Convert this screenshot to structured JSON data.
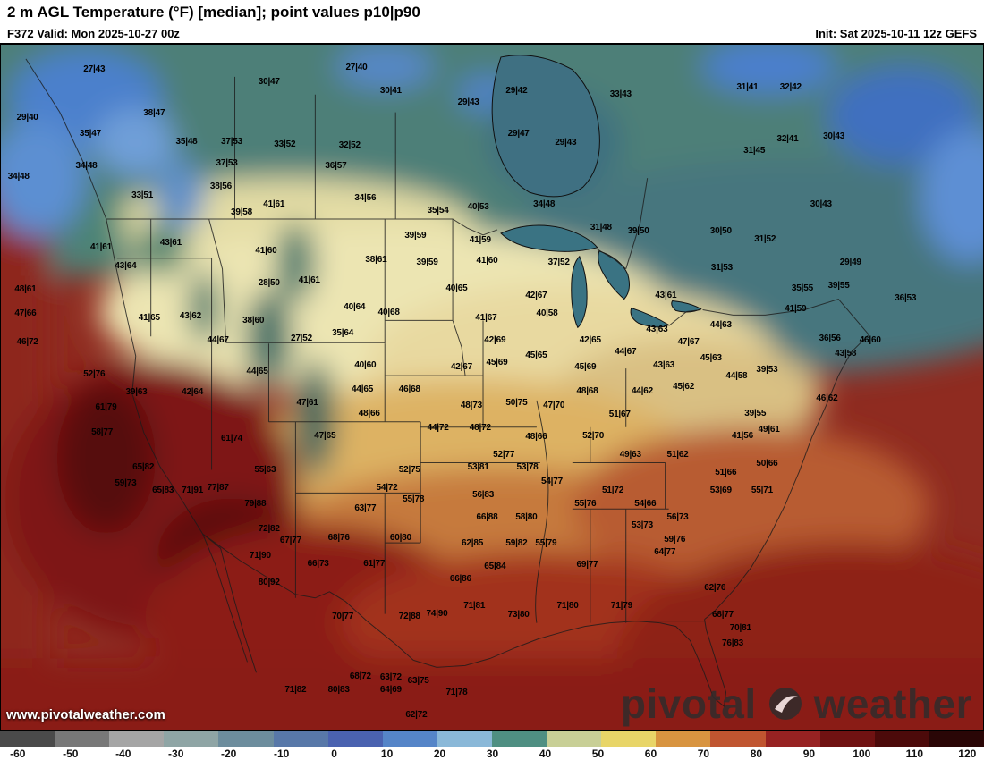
{
  "header": {
    "title": "2 m AGL Temperature (°F) [median]; point values p10|p90",
    "valid": "F372 Valid: Mon 2025-10-27 00z",
    "init": "Init: Sat 2025-10-11 12z GEFS"
  },
  "watermark": {
    "url_text": "www.pivotalweather.com",
    "brand_left": "pivotal",
    "brand_right": "weather"
  },
  "map": {
    "points": [
      {
        "v": "27|43",
        "x": 9.5,
        "y": 3.6
      },
      {
        "v": "30|47",
        "x": 27.3,
        "y": 5.5
      },
      {
        "v": "27|40",
        "x": 36.2,
        "y": 3.4
      },
      {
        "v": "30|41",
        "x": 39.7,
        "y": 6.8
      },
      {
        "v": "29|43",
        "x": 47.6,
        "y": 8.5
      },
      {
        "v": "29|42",
        "x": 52.5,
        "y": 6.8
      },
      {
        "v": "33|43",
        "x": 63.1,
        "y": 7.3
      },
      {
        "v": "31|41",
        "x": 76.0,
        "y": 6.3
      },
      {
        "v": "32|42",
        "x": 80.4,
        "y": 6.3
      },
      {
        "v": "29|40",
        "x": 2.7,
        "y": 10.7
      },
      {
        "v": "38|47",
        "x": 15.6,
        "y": 10.0
      },
      {
        "v": "35|47",
        "x": 9.1,
        "y": 13.0
      },
      {
        "v": "35|48",
        "x": 18.9,
        "y": 14.2
      },
      {
        "v": "37|53",
        "x": 23.5,
        "y": 14.2
      },
      {
        "v": "33|52",
        "x": 28.9,
        "y": 14.6
      },
      {
        "v": "32|52",
        "x": 35.5,
        "y": 14.8
      },
      {
        "v": "29|47",
        "x": 52.7,
        "y": 13.0
      },
      {
        "v": "29|43",
        "x": 57.5,
        "y": 14.3
      },
      {
        "v": "32|41",
        "x": 80.1,
        "y": 13.9
      },
      {
        "v": "30|43",
        "x": 84.8,
        "y": 13.5
      },
      {
        "v": "31|45",
        "x": 76.7,
        "y": 15.6
      },
      {
        "v": "34|48",
        "x": 8.7,
        "y": 17.8
      },
      {
        "v": "37|53",
        "x": 23.0,
        "y": 17.4
      },
      {
        "v": "36|57",
        "x": 34.1,
        "y": 17.8
      },
      {
        "v": "34|48",
        "x": 1.8,
        "y": 19.3
      },
      {
        "v": "38|56",
        "x": 22.4,
        "y": 20.8
      },
      {
        "v": "33|51",
        "x": 14.4,
        "y": 22.0
      },
      {
        "v": "34|56",
        "x": 37.1,
        "y": 22.4
      },
      {
        "v": "30|43",
        "x": 83.5,
        "y": 23.4
      },
      {
        "v": "41|61",
        "x": 27.8,
        "y": 23.4
      },
      {
        "v": "39|58",
        "x": 24.5,
        "y": 24.6
      },
      {
        "v": "35|54",
        "x": 44.5,
        "y": 24.3
      },
      {
        "v": "40|53",
        "x": 48.6,
        "y": 23.7
      },
      {
        "v": "34|48",
        "x": 55.3,
        "y": 23.4
      },
      {
        "v": "31|48",
        "x": 61.1,
        "y": 26.7
      },
      {
        "v": "39|50",
        "x": 64.9,
        "y": 27.3
      },
      {
        "v": "30|50",
        "x": 73.3,
        "y": 27.3
      },
      {
        "v": "31|52",
        "x": 77.8,
        "y": 28.4
      },
      {
        "v": "41|61",
        "x": 10.2,
        "y": 29.6
      },
      {
        "v": "43|61",
        "x": 17.3,
        "y": 29.0
      },
      {
        "v": "41|60",
        "x": 27.0,
        "y": 30.2
      },
      {
        "v": "39|59",
        "x": 42.2,
        "y": 27.9
      },
      {
        "v": "41|59",
        "x": 48.8,
        "y": 28.6
      },
      {
        "v": "43|64",
        "x": 12.7,
        "y": 32.4
      },
      {
        "v": "38|61",
        "x": 38.2,
        "y": 31.5
      },
      {
        "v": "39|59",
        "x": 43.4,
        "y": 31.9
      },
      {
        "v": "41|60",
        "x": 49.5,
        "y": 31.6
      },
      {
        "v": "37|52",
        "x": 56.8,
        "y": 31.9
      },
      {
        "v": "31|53",
        "x": 73.4,
        "y": 32.7
      },
      {
        "v": "29|49",
        "x": 86.5,
        "y": 31.9
      },
      {
        "v": "48|61",
        "x": 2.5,
        "y": 35.8
      },
      {
        "v": "28|50",
        "x": 27.3,
        "y": 34.8
      },
      {
        "v": "41|61",
        "x": 31.4,
        "y": 34.5
      },
      {
        "v": "40|65",
        "x": 46.4,
        "y": 35.7
      },
      {
        "v": "35|55",
        "x": 81.6,
        "y": 35.7
      },
      {
        "v": "39|55",
        "x": 85.3,
        "y": 35.2
      },
      {
        "v": "36|53",
        "x": 92.1,
        "y": 37.1
      },
      {
        "v": "43|61",
        "x": 67.7,
        "y": 36.7
      },
      {
        "v": "42|67",
        "x": 54.5,
        "y": 36.7
      },
      {
        "v": "47|66",
        "x": 2.5,
        "y": 39.3
      },
      {
        "v": "41|65",
        "x": 15.1,
        "y": 40.0
      },
      {
        "v": "43|62",
        "x": 19.3,
        "y": 39.7
      },
      {
        "v": "38|60",
        "x": 25.7,
        "y": 40.4
      },
      {
        "v": "40|64",
        "x": 36.0,
        "y": 38.4
      },
      {
        "v": "40|68",
        "x": 39.5,
        "y": 39.1
      },
      {
        "v": "40|58",
        "x": 55.6,
        "y": 39.3
      },
      {
        "v": "41|67",
        "x": 49.4,
        "y": 40.0
      },
      {
        "v": "43|63",
        "x": 66.8,
        "y": 41.7
      },
      {
        "v": "44|63",
        "x": 73.3,
        "y": 41.0
      },
      {
        "v": "41|59",
        "x": 80.9,
        "y": 38.7
      },
      {
        "v": "36|56",
        "x": 84.4,
        "y": 43.0
      },
      {
        "v": "46|60",
        "x": 88.5,
        "y": 43.2
      },
      {
        "v": "43|58",
        "x": 86.0,
        "y": 45.2
      },
      {
        "v": "46|72",
        "x": 2.7,
        "y": 43.5
      },
      {
        "v": "44|67",
        "x": 22.1,
        "y": 43.2
      },
      {
        "v": "27|52",
        "x": 30.6,
        "y": 43.0
      },
      {
        "v": "35|64",
        "x": 34.8,
        "y": 42.2
      },
      {
        "v": "42|69",
        "x": 50.3,
        "y": 43.2
      },
      {
        "v": "42|65",
        "x": 60.0,
        "y": 43.2
      },
      {
        "v": "44|67",
        "x": 63.6,
        "y": 44.9
      },
      {
        "v": "47|67",
        "x": 70.0,
        "y": 43.5
      },
      {
        "v": "45|63",
        "x": 72.3,
        "y": 45.8
      },
      {
        "v": "39|53",
        "x": 78.0,
        "y": 47.5
      },
      {
        "v": "52|76",
        "x": 9.5,
        "y": 48.2
      },
      {
        "v": "44|65",
        "x": 26.1,
        "y": 47.8
      },
      {
        "v": "40|60",
        "x": 37.1,
        "y": 46.9
      },
      {
        "v": "42|67",
        "x": 46.9,
        "y": 47.1
      },
      {
        "v": "45|69",
        "x": 50.5,
        "y": 46.5
      },
      {
        "v": "45|65",
        "x": 54.5,
        "y": 45.4
      },
      {
        "v": "45|69",
        "x": 59.5,
        "y": 47.1
      },
      {
        "v": "43|63",
        "x": 67.5,
        "y": 46.9
      },
      {
        "v": "44|62",
        "x": 65.3,
        "y": 50.7
      },
      {
        "v": "45|62",
        "x": 69.5,
        "y": 50.0
      },
      {
        "v": "44|58",
        "x": 74.9,
        "y": 48.4
      },
      {
        "v": "39|63",
        "x": 13.8,
        "y": 50.8
      },
      {
        "v": "42|64",
        "x": 19.5,
        "y": 50.8
      },
      {
        "v": "44|65",
        "x": 36.8,
        "y": 50.4
      },
      {
        "v": "46|68",
        "x": 41.6,
        "y": 50.4
      },
      {
        "v": "48|66",
        "x": 37.5,
        "y": 53.9
      },
      {
        "v": "61|79",
        "x": 10.7,
        "y": 53.0
      },
      {
        "v": "47|61",
        "x": 31.2,
        "y": 52.3
      },
      {
        "v": "48|73",
        "x": 47.9,
        "y": 52.7
      },
      {
        "v": "50|75",
        "x": 52.5,
        "y": 52.3
      },
      {
        "v": "47|70",
        "x": 56.3,
        "y": 52.7
      },
      {
        "v": "48|68",
        "x": 59.7,
        "y": 50.7
      },
      {
        "v": "39|55",
        "x": 76.8,
        "y": 53.9
      },
      {
        "v": "49|61",
        "x": 78.2,
        "y": 56.3
      },
      {
        "v": "41|56",
        "x": 75.5,
        "y": 57.2
      },
      {
        "v": "58|77",
        "x": 10.3,
        "y": 56.6
      },
      {
        "v": "61|74",
        "x": 23.5,
        "y": 57.6
      },
      {
        "v": "47|65",
        "x": 33.0,
        "y": 57.2
      },
      {
        "v": "44|72",
        "x": 44.5,
        "y": 56.0
      },
      {
        "v": "48|72",
        "x": 48.8,
        "y": 56.0
      },
      {
        "v": "48|66",
        "x": 54.5,
        "y": 57.3
      },
      {
        "v": "52|70",
        "x": 60.3,
        "y": 57.2
      },
      {
        "v": "51|67",
        "x": 63.0,
        "y": 54.0
      },
      {
        "v": "49|63",
        "x": 64.1,
        "y": 59.9
      },
      {
        "v": "51|62",
        "x": 68.9,
        "y": 59.9
      },
      {
        "v": "52|77",
        "x": 51.2,
        "y": 59.9
      },
      {
        "v": "46|62",
        "x": 84.1,
        "y": 51.7
      },
      {
        "v": "65|82",
        "x": 14.5,
        "y": 61.7
      },
      {
        "v": "55|63",
        "x": 26.9,
        "y": 62.1
      },
      {
        "v": "53|81",
        "x": 48.6,
        "y": 61.7
      },
      {
        "v": "53|78",
        "x": 53.6,
        "y": 61.8
      },
      {
        "v": "51|66",
        "x": 73.8,
        "y": 62.5
      },
      {
        "v": "50|66",
        "x": 78.0,
        "y": 61.2
      },
      {
        "v": "59|73",
        "x": 12.7,
        "y": 64.1
      },
      {
        "v": "65|83",
        "x": 16.5,
        "y": 65.1
      },
      {
        "v": "71|91",
        "x": 19.5,
        "y": 65.1
      },
      {
        "v": "77|87",
        "x": 22.1,
        "y": 64.7
      },
      {
        "v": "52|75",
        "x": 41.6,
        "y": 62.1
      },
      {
        "v": "54|72",
        "x": 39.3,
        "y": 64.7
      },
      {
        "v": "54|77",
        "x": 56.1,
        "y": 63.8
      },
      {
        "v": "51|72",
        "x": 62.3,
        "y": 65.1
      },
      {
        "v": "53|69",
        "x": 73.3,
        "y": 65.1
      },
      {
        "v": "55|71",
        "x": 77.5,
        "y": 65.1
      },
      {
        "v": "79|88",
        "x": 25.9,
        "y": 67.1
      },
      {
        "v": "55|78",
        "x": 42.0,
        "y": 66.4
      },
      {
        "v": "56|83",
        "x": 49.1,
        "y": 65.8
      },
      {
        "v": "55|76",
        "x": 59.5,
        "y": 67.1
      },
      {
        "v": "54|66",
        "x": 65.6,
        "y": 67.1
      },
      {
        "v": "56|73",
        "x": 68.9,
        "y": 69.0
      },
      {
        "v": "63|77",
        "x": 37.1,
        "y": 67.7
      },
      {
        "v": "66|88",
        "x": 49.5,
        "y": 69.0
      },
      {
        "v": "58|80",
        "x": 53.5,
        "y": 69.0
      },
      {
        "v": "53|73",
        "x": 65.3,
        "y": 70.3
      },
      {
        "v": "72|82",
        "x": 27.3,
        "y": 70.8
      },
      {
        "v": "67|77",
        "x": 29.5,
        "y": 72.5
      },
      {
        "v": "68|76",
        "x": 34.4,
        "y": 72.1
      },
      {
        "v": "60|80",
        "x": 40.7,
        "y": 72.1
      },
      {
        "v": "62|85",
        "x": 48.0,
        "y": 72.9
      },
      {
        "v": "59|82",
        "x": 52.5,
        "y": 72.8
      },
      {
        "v": "55|79",
        "x": 55.5,
        "y": 72.8
      },
      {
        "v": "59|76",
        "x": 68.6,
        "y": 72.3
      },
      {
        "v": "71|90",
        "x": 26.4,
        "y": 74.7
      },
      {
        "v": "66|73",
        "x": 32.3,
        "y": 75.8
      },
      {
        "v": "61|77",
        "x": 38.0,
        "y": 75.8
      },
      {
        "v": "65|84",
        "x": 50.3,
        "y": 76.2
      },
      {
        "v": "69|77",
        "x": 59.7,
        "y": 76.0
      },
      {
        "v": "64|77",
        "x": 67.6,
        "y": 74.2
      },
      {
        "v": "62|76",
        "x": 72.7,
        "y": 79.4
      },
      {
        "v": "80|92",
        "x": 27.3,
        "y": 78.6
      },
      {
        "v": "66|86",
        "x": 46.8,
        "y": 78.1
      },
      {
        "v": "71|81",
        "x": 48.2,
        "y": 82.0
      },
      {
        "v": "73|80",
        "x": 52.7,
        "y": 83.3
      },
      {
        "v": "71|80",
        "x": 57.7,
        "y": 82.0
      },
      {
        "v": "71|79",
        "x": 63.2,
        "y": 82.0
      },
      {
        "v": "70|77",
        "x": 34.8,
        "y": 83.6
      },
      {
        "v": "72|88",
        "x": 41.6,
        "y": 83.6
      },
      {
        "v": "74|90",
        "x": 44.4,
        "y": 83.2
      },
      {
        "v": "68|77",
        "x": 73.5,
        "y": 83.3
      },
      {
        "v": "70|81",
        "x": 75.3,
        "y": 85.2
      },
      {
        "v": "76|83",
        "x": 74.5,
        "y": 87.5
      },
      {
        "v": "68|72",
        "x": 36.6,
        "y": 92.3
      },
      {
        "v": "63|72",
        "x": 39.7,
        "y": 92.4
      },
      {
        "v": "80|83",
        "x": 34.4,
        "y": 94.3
      },
      {
        "v": "71|82",
        "x": 30.0,
        "y": 94.3
      },
      {
        "v": "64|69",
        "x": 39.7,
        "y": 94.3
      },
      {
        "v": "63|75",
        "x": 42.5,
        "y": 93.0
      },
      {
        "v": "71|78",
        "x": 46.4,
        "y": 94.7
      },
      {
        "v": "62|72",
        "x": 42.3,
        "y": 97.9
      }
    ]
  },
  "colorbar": {
    "ticks": [
      "-60",
      "-50",
      "-40",
      "-30",
      "-20",
      "-10",
      "0",
      "10",
      "20",
      "30",
      "40",
      "50",
      "60",
      "70",
      "80",
      "90",
      "100",
      "110",
      "120"
    ],
    "segments": [
      "#4a4a4a",
      "#787878",
      "#a5a5a5",
      "#8fa5a5",
      "#6d8d9d",
      "#5878a8",
      "#4a62b0",
      "#5585c8",
      "#8ab8d8",
      "#4f8f82",
      "#c8cf96",
      "#e8d568",
      "#d89440",
      "#c05530",
      "#972222",
      "#701212",
      "#4c0a0a",
      "#2a0606"
    ]
  }
}
